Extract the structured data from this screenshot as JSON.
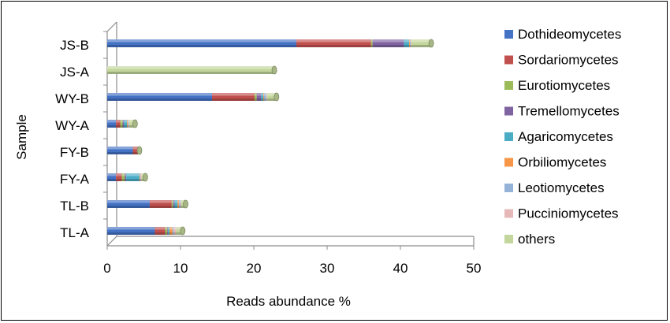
{
  "chart_data": {
    "type": "bar",
    "orientation": "horizontal",
    "stacked": true,
    "style": "3d-cylinder",
    "xlabel": "Reads  abundance %",
    "ylabel": "Sample",
    "xlim": [
      0,
      50
    ],
    "xticks": [
      "0",
      "10",
      "20",
      "30",
      "40",
      "50"
    ],
    "grid": false,
    "legend_position": "right",
    "categories": [
      "JS-B",
      "JS-A",
      "WY-B",
      "WY-A",
      "FY-B",
      "FY-A",
      "TL-B",
      "TL-A"
    ],
    "series": [
      {
        "name": "Dothideomycetes",
        "color": "#4472C4",
        "values": [
          25.8,
          0,
          14.3,
          1.2,
          3.5,
          1.2,
          5.8,
          6.5
        ]
      },
      {
        "name": "Sordariomycetes",
        "color": "#C0504D",
        "values": [
          10.2,
          0,
          5.8,
          0.6,
          0.7,
          0.8,
          3.0,
          1.4
        ]
      },
      {
        "name": "Eurotiomycetes",
        "color": "#9BBB59",
        "values": [
          0.2,
          0,
          0.3,
          0.3,
          0,
          0.4,
          0.2,
          0.3
        ]
      },
      {
        "name": "Tremellomycetes",
        "color": "#8064A2",
        "values": [
          4.3,
          0,
          0.6,
          0.2,
          0,
          0.2,
          0.2,
          0.1
        ]
      },
      {
        "name": "Agaricomycetes",
        "color": "#4BACC6",
        "values": [
          0.7,
          0,
          0.3,
          0.4,
          0,
          1.8,
          0.4,
          0.2
        ]
      },
      {
        "name": "Orbiliomycetes",
        "color": "#F79646",
        "values": [
          0.1,
          0,
          0.1,
          0.1,
          0,
          0.1,
          0.2,
          0.4
        ]
      },
      {
        "name": "Leotiomycetes",
        "color": "#95B3D7",
        "values": [
          0.1,
          0,
          0.3,
          0.1,
          0,
          0.1,
          0.2,
          0.2
        ]
      },
      {
        "name": "Pucciniomycetes",
        "color": "#E6B9B8",
        "values": [
          0.1,
          0,
          0.1,
          0.1,
          0,
          0.1,
          0.1,
          0.3
        ]
      },
      {
        "name": "others",
        "color": "#C3D69B",
        "values": [
          2.7,
          22.8,
          1.3,
          0.8,
          0.2,
          0.5,
          0.6,
          0.9
        ]
      }
    ]
  }
}
